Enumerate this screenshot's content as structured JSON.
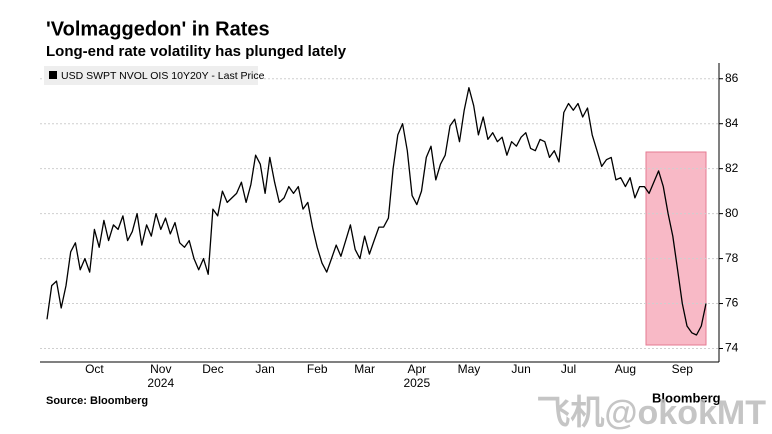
{
  "chart_data": {
    "type": "line",
    "title": "'Volmaggedon' in Rates",
    "subtitle": "Long-end rate volatility has plunged lately",
    "source": "Source: Bloomberg",
    "brand": "Bloomberg",
    "watermark": "飞机@okokMT",
    "categories": [
      null,
      null,
      null,
      null,
      null,
      null,
      null,
      null,
      null,
      null,
      "Oct",
      null,
      null,
      null,
      null,
      null,
      null,
      null,
      null,
      null,
      null,
      null,
      null,
      null,
      "Nov",
      null,
      null,
      null,
      null,
      null,
      null,
      null,
      null,
      null,
      null,
      "Dec",
      null,
      null,
      null,
      null,
      null,
      null,
      null,
      null,
      null,
      null,
      "Jan",
      null,
      null,
      null,
      null,
      null,
      null,
      null,
      null,
      null,
      null,
      "Feb",
      null,
      null,
      null,
      null,
      null,
      null,
      null,
      null,
      null,
      "Mar",
      null,
      null,
      null,
      null,
      null,
      null,
      null,
      null,
      null,
      null,
      "Apr",
      null,
      null,
      null,
      null,
      null,
      null,
      null,
      null,
      null,
      null,
      "May",
      null,
      null,
      null,
      null,
      null,
      null,
      null,
      null,
      null,
      null,
      "Jun",
      null,
      null,
      null,
      null,
      null,
      null,
      null,
      null,
      null,
      "Jul",
      null,
      null,
      null,
      null,
      null,
      null,
      null,
      null,
      null,
      null,
      null,
      "Aug",
      null,
      null,
      null,
      null,
      null,
      null,
      null,
      null,
      null,
      null,
      null,
      "Sep",
      null,
      null,
      null,
      null,
      null
    ],
    "year_labels": [
      {
        "label": "2024",
        "under": "Nov"
      },
      {
        "label": "2025",
        "under": "Apr"
      }
    ],
    "series": [
      {
        "name": "USD SWPT NVOL OIS 10Y20Y - Last Price",
        "color": "#000000",
        "values": [
          75.3,
          76.8,
          77,
          75.8,
          76.8,
          78.3,
          78.7,
          77.5,
          78,
          77.4,
          79.3,
          78.5,
          79.7,
          78.8,
          79.5,
          79.3,
          79.9,
          78.8,
          79.2,
          80,
          78.6,
          79.5,
          79,
          80,
          79.3,
          79.8,
          79.1,
          79.6,
          78.7,
          78.5,
          78.8,
          78,
          77.5,
          78,
          77.3,
          80.2,
          79.9,
          81,
          80.5,
          80.7,
          80.9,
          81.4,
          80.5,
          81.3,
          82.6,
          82.2,
          80.9,
          82.5,
          81.4,
          80.5,
          80.7,
          81.2,
          80.9,
          81.2,
          80.2,
          80.5,
          79.4,
          78.5,
          77.8,
          77.4,
          78,
          78.6,
          78.1,
          78.8,
          79.5,
          78.4,
          78,
          79,
          78.2,
          78.8,
          79.4,
          79.4,
          79.8,
          82,
          83.5,
          84,
          82.8,
          80.8,
          80.4,
          81,
          82.5,
          83,
          81.5,
          82.2,
          82.6,
          83.9,
          84.2,
          83.2,
          84.6,
          85.6,
          84.8,
          83.5,
          84.3,
          83.3,
          83.6,
          83.2,
          83.4,
          82.6,
          83.2,
          83,
          83.4,
          83.6,
          82.9,
          82.8,
          83.3,
          83.2,
          82.5,
          82.8,
          82.3,
          84.5,
          84.9,
          84.6,
          84.9,
          84.3,
          84.7,
          83.5,
          82.8,
          82.1,
          82.4,
          82.5,
          81.5,
          81.6,
          81.2,
          81.6,
          80.7,
          81.2,
          81.2,
          80.9,
          81.4,
          81.9,
          81.2,
          80,
          79,
          77.5,
          76,
          75,
          74.7,
          74.6,
          75,
          76
        ]
      }
    ],
    "ylim": [
      73.4,
      86.7
    ],
    "yticks": [
      74,
      76,
      78,
      80,
      82,
      84,
      86
    ],
    "grid": true
  }
}
